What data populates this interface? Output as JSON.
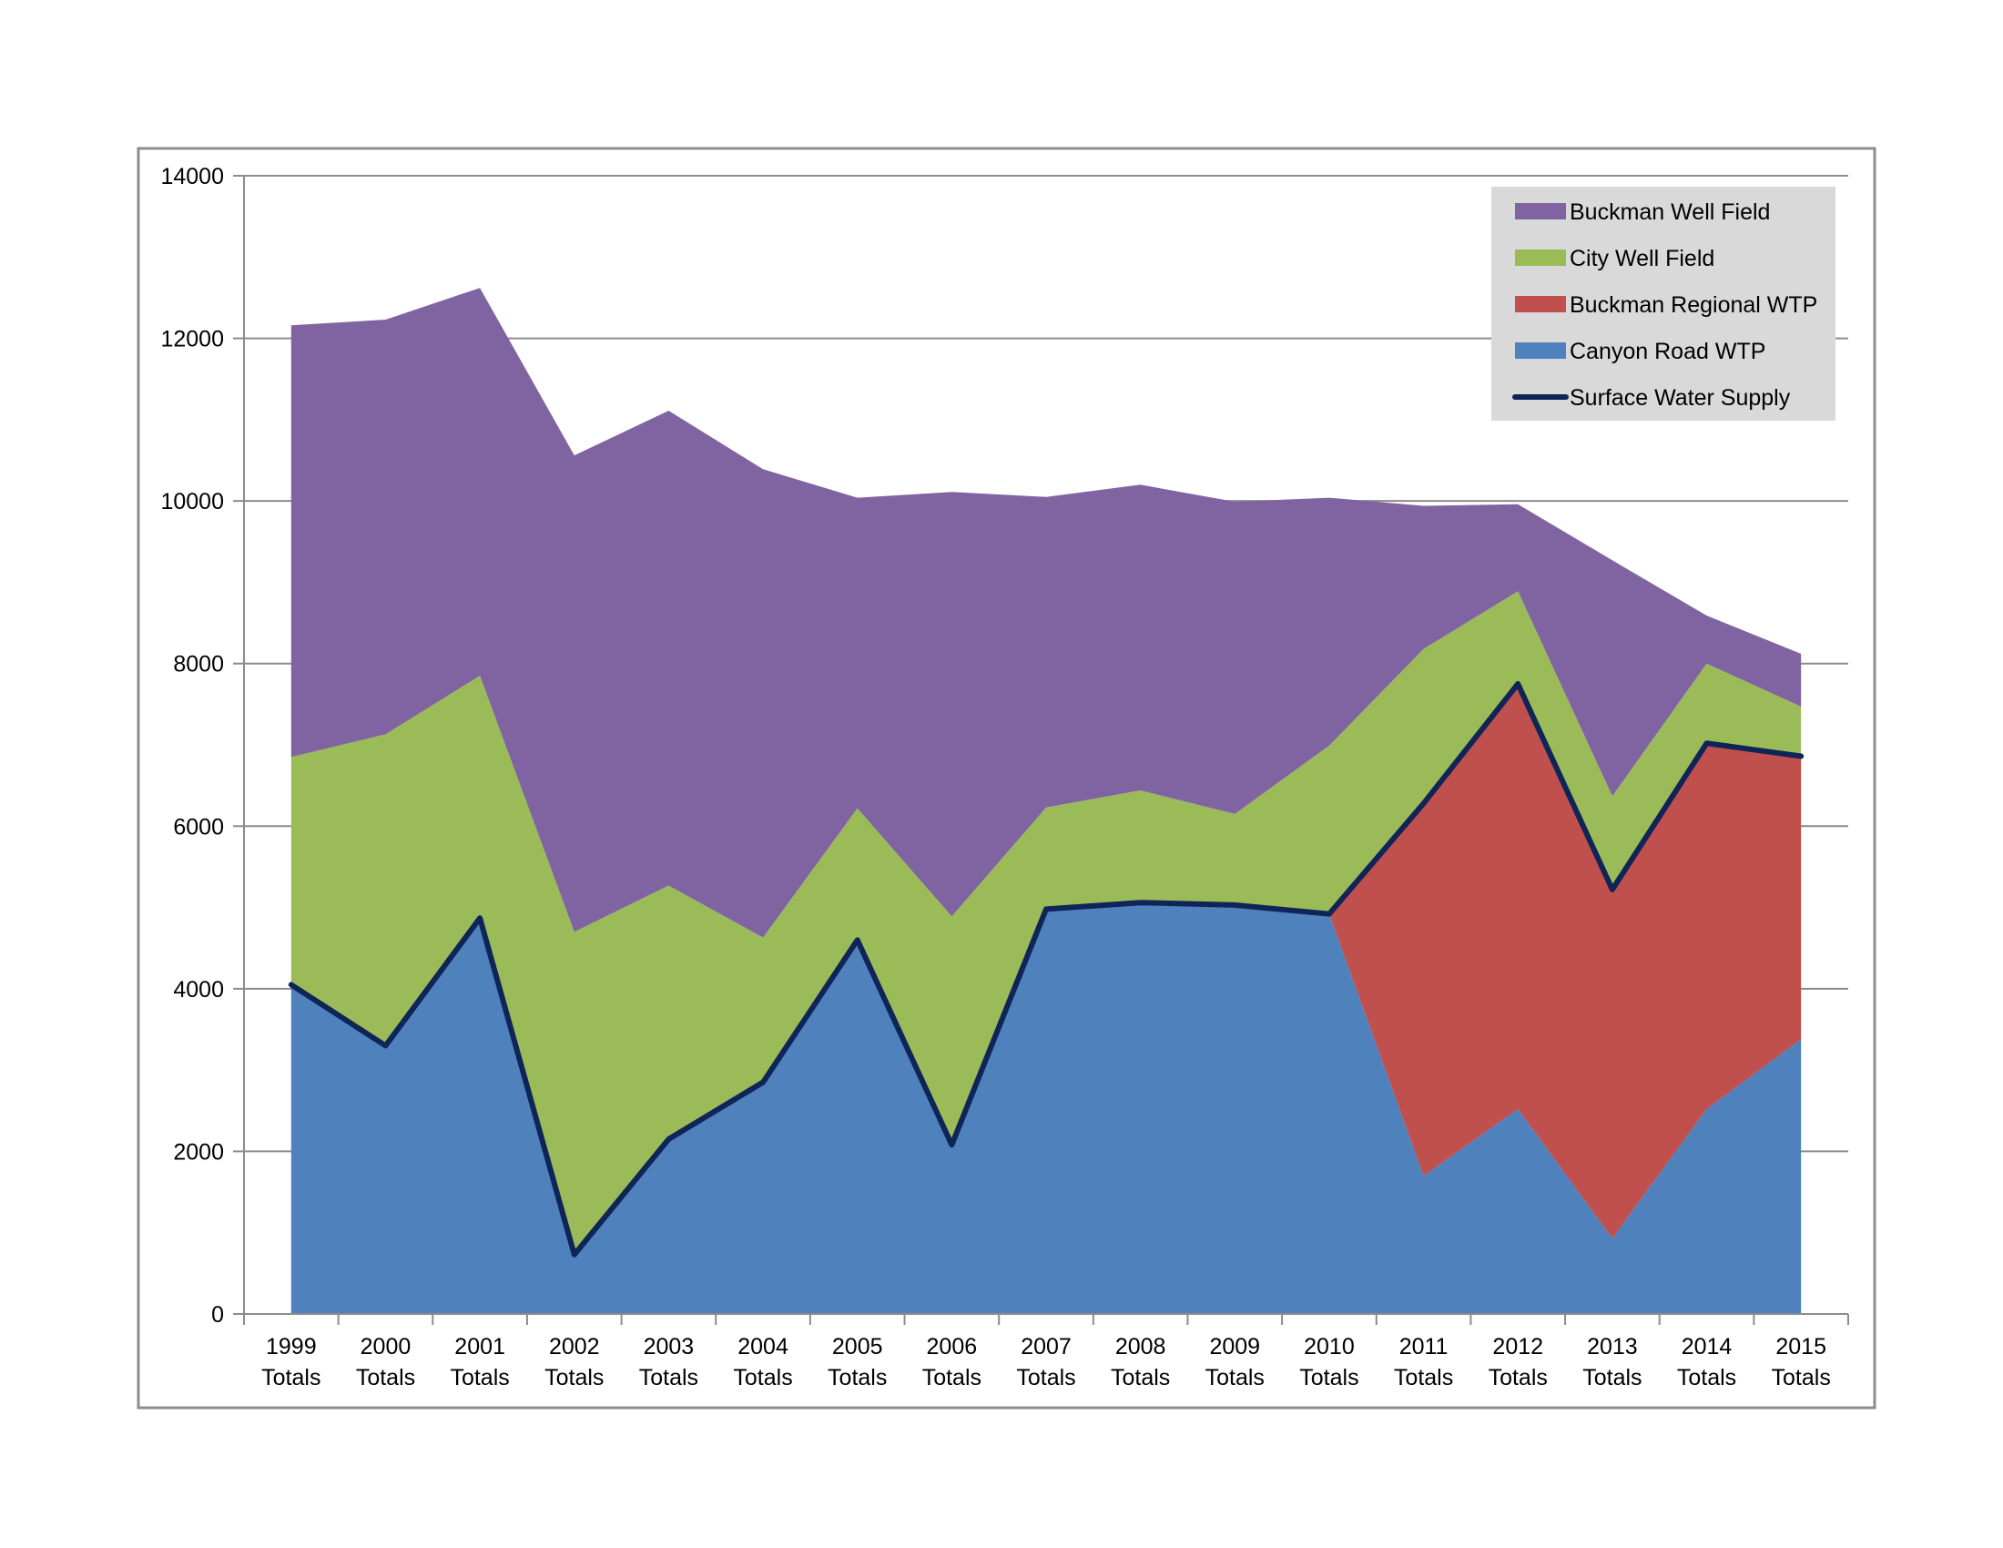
{
  "chart_data": {
    "type": "area",
    "stacked": true,
    "categories": [
      [
        "1999",
        "Totals"
      ],
      [
        "2000",
        "Totals"
      ],
      [
        "2001",
        "Totals"
      ],
      [
        "2002",
        "Totals"
      ],
      [
        "2003",
        "Totals"
      ],
      [
        "2004",
        "Totals"
      ],
      [
        "2005",
        "Totals"
      ],
      [
        "2006",
        "Totals"
      ],
      [
        "2007",
        "Totals"
      ],
      [
        "2008",
        "Totals"
      ],
      [
        "2009",
        "Totals"
      ],
      [
        "2010",
        "Totals"
      ],
      [
        "2011",
        "Totals"
      ],
      [
        "2012",
        "Totals"
      ],
      [
        "2013",
        "Totals"
      ],
      [
        "2014",
        "Totals"
      ],
      [
        "2015",
        "Totals"
      ]
    ],
    "ylim": [
      0,
      14000
    ],
    "yticks": [
      "0",
      "2000",
      "4000",
      "6000",
      "8000",
      "10000",
      "12000",
      "14000"
    ],
    "grid": true,
    "legend_position": "top-right",
    "series": [
      {
        "name": "Canyon Road WTP",
        "color": "#4F81BD",
        "values": [
          4050,
          3300,
          4870,
          730,
          2150,
          2850,
          4600,
          2080,
          4980,
          5060,
          5030,
          4920,
          1700,
          2520,
          930,
          2520,
          3380
        ]
      },
      {
        "name": "Buckman Regional WTP",
        "color": "#C0504D",
        "values": [
          0,
          0,
          0,
          0,
          0,
          0,
          0,
          0,
          0,
          0,
          0,
          0,
          4580,
          5230,
          4290,
          4500,
          3480
        ]
      },
      {
        "name": "City Well Field",
        "color": "#9BBB59",
        "values": [
          2800,
          3830,
          2980,
          3970,
          3120,
          1780,
          1620,
          2810,
          1250,
          1380,
          1120,
          2070,
          1900,
          1140,
          1150,
          980,
          610
        ]
      },
      {
        "name": "Buckman Well Field",
        "color": "#8064A2",
        "values": [
          5310,
          5100,
          4770,
          5860,
          5840,
          5760,
          3820,
          5220,
          3820,
          3760,
          3840,
          3050,
          1760,
          1070,
          2900,
          590,
          650
        ]
      }
    ],
    "line_series": {
      "name": "Surface Water Supply",
      "color": "#0F2557",
      "values": [
        4050,
        3300,
        4870,
        730,
        2150,
        2850,
        4600,
        2080,
        4980,
        5060,
        5030,
        4920,
        6280,
        7750,
        5220,
        7020,
        6860
      ]
    },
    "legend_order": [
      "Buckman Well Field",
      "City Well Field",
      "Buckman Regional WTP",
      "Canyon Road WTP",
      "Surface Water Supply"
    ]
  }
}
